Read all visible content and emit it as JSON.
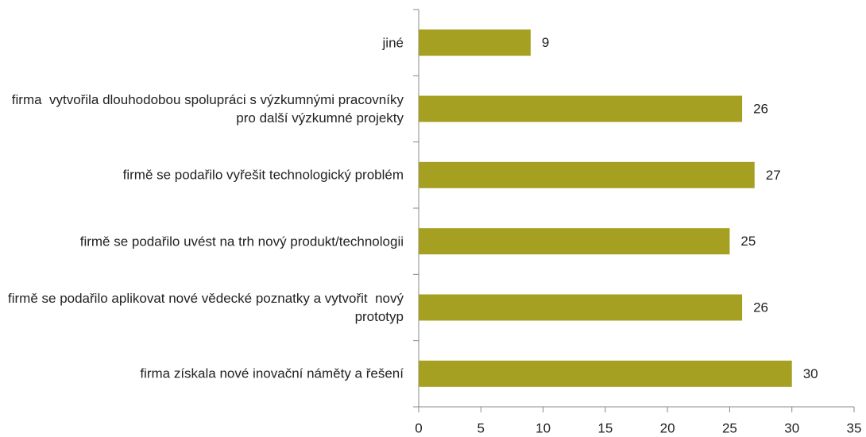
{
  "chart_data": {
    "type": "bar",
    "orientation": "horizontal",
    "categories": [
      "jiné",
      "firma  vytvořila dlouhodobou spolupráci s výzkumnými pracovníky pro další výzkumné projekty",
      "firmě se podařilo vyřešit technologický problém",
      "firmě se podařilo uvést na trh nový produkt/technologii",
      "firmě se podařilo aplikovat nové vědecké poznatky a vytvořit  nový prototyp",
      "firma získala nové inovační náměty a řešení"
    ],
    "values": [
      9,
      26,
      27,
      25,
      26,
      30
    ],
    "color": "#a5a021",
    "xlim": [
      0,
      35
    ],
    "xticks": [
      0,
      5,
      10,
      15,
      20,
      25,
      30,
      35
    ],
    "grid": false
  }
}
